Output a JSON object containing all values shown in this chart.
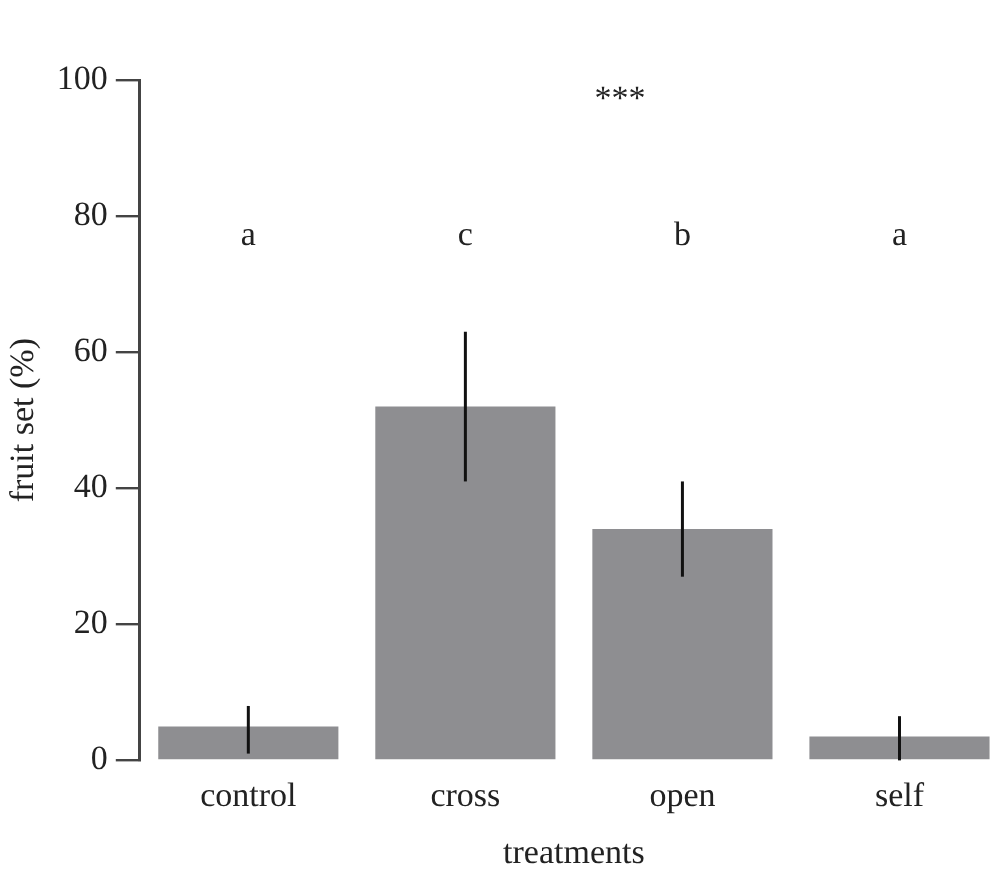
{
  "chart_data": {
    "type": "bar",
    "xlabel": "treatments",
    "ylabel": "fruit set (%)",
    "categories": [
      "control",
      "cross",
      "open",
      "self"
    ],
    "values": [
      5,
      52,
      34,
      3.5
    ],
    "errors": [
      [
        1,
        8
      ],
      [
        41,
        63
      ],
      [
        27,
        41
      ],
      [
        0,
        6.5
      ]
    ],
    "color": "#8e8e91",
    "ylim": [
      0,
      100
    ],
    "yticks": [
      0,
      20,
      40,
      60,
      80,
      100
    ],
    "grid": false,
    "legend": false,
    "annotations": [
      "***",
      "a",
      "c",
      "b",
      "a"
    ]
  }
}
